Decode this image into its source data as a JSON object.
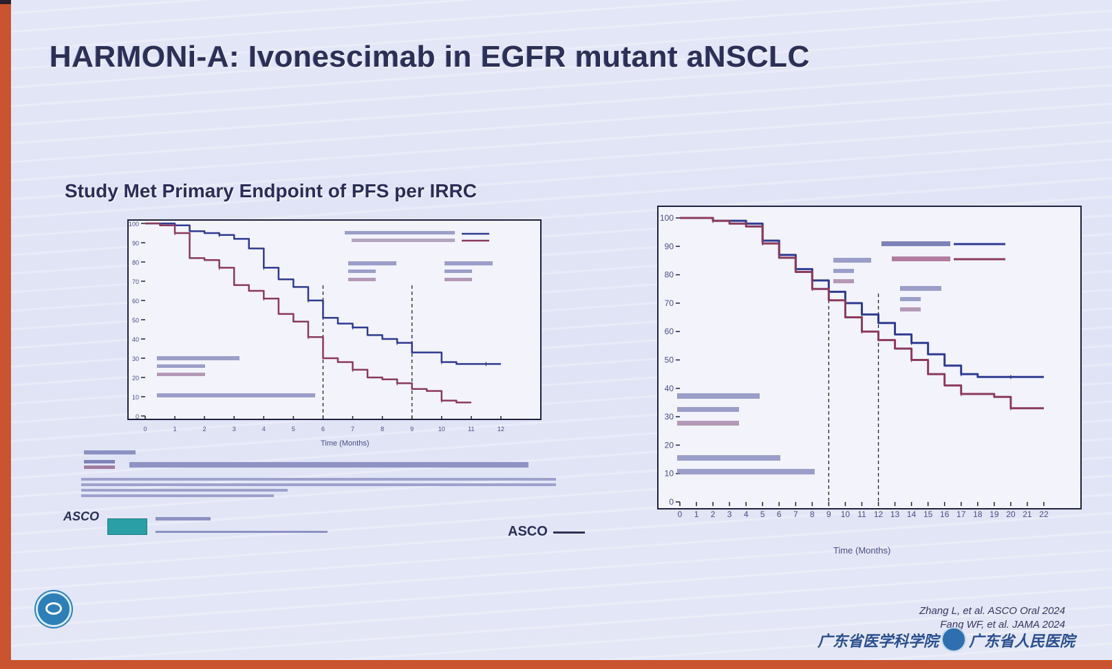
{
  "slide": {
    "title": "HARMONi-A: Ivonescimab in EGFR mutant aNSCLC",
    "subtitle": "Study Met Primary Endpoint of PFS per IRRC",
    "footer_refs": [
      "Zhang L, et al. ASCO Oral 2024",
      "Fang WF, et al. JAMA 2024"
    ],
    "asco_mark": "ASCO",
    "institution_left": "广东省医学科学院",
    "institution_right": "广东省人民医院",
    "colors": {
      "ivonescimab": "#2f3a8f",
      "placebo": "#8b3a5c",
      "frame": "#1e2040",
      "text": "#2c2f56"
    }
  },
  "chart_data": [
    {
      "type": "line",
      "title": "Study Met Primary Endpoint of PFS per IRRC",
      "xlabel": "Time (Months)",
      "ylabel": "",
      "xlim": [
        0,
        13
      ],
      "ylim": [
        0,
        100
      ],
      "xticks": [
        "0",
        "1",
        "2",
        "3",
        "4",
        "5",
        "6",
        "7",
        "8",
        "9",
        "10",
        "11",
        "12"
      ],
      "yticks": [
        "0",
        "10",
        "20",
        "30",
        "40",
        "50",
        "60",
        "70",
        "80",
        "90",
        "100"
      ],
      "grid": false,
      "legend_position": "top-right",
      "reference_lines_x": [
        6,
        9
      ],
      "series": [
        {
          "color": "#2f3a8f",
          "x": [
            0,
            0.5,
            1,
            1.5,
            2,
            2.5,
            3,
            3.5,
            4,
            4.5,
            5,
            5.5,
            6,
            6.5,
            7,
            7.5,
            8,
            8.5,
            9,
            9.5,
            10,
            10.5,
            11,
            11.5,
            12
          ],
          "y": [
            100,
            100,
            99,
            96,
            95,
            94,
            92,
            87,
            77,
            71,
            67,
            60,
            51,
            48,
            46,
            42,
            40,
            38,
            33,
            33,
            28,
            27,
            27,
            27,
            27
          ]
        },
        {
          "color": "#8b3a5c",
          "x": [
            0,
            0.5,
            1,
            1.5,
            2,
            2.5,
            3,
            3.5,
            4,
            4.5,
            5,
            5.5,
            6,
            6.5,
            7,
            7.5,
            8,
            8.5,
            9,
            9.5,
            10,
            10.5,
            11
          ],
          "y": [
            100,
            99,
            95,
            82,
            81,
            77,
            68,
            65,
            61,
            53,
            49,
            41,
            30,
            28,
            24,
            20,
            19,
            17,
            14,
            13,
            8,
            7,
            7
          ]
        }
      ]
    },
    {
      "type": "line",
      "title": "",
      "xlabel": "Time (Months)",
      "ylabel": "",
      "xlim": [
        0,
        23
      ],
      "ylim": [
        0,
        100
      ],
      "xticks": [
        "0",
        "1",
        "2",
        "3",
        "4",
        "5",
        "6",
        "7",
        "8",
        "9",
        "10",
        "11",
        "12",
        "13",
        "14",
        "15",
        "16",
        "17",
        "18",
        "19",
        "20",
        "21",
        "22"
      ],
      "yticks": [
        "0",
        "10",
        "20",
        "30",
        "40",
        "50",
        "60",
        "70",
        "80",
        "90",
        "100"
      ],
      "grid": false,
      "legend_position": "top-right",
      "reference_lines_x": [
        9,
        12
      ],
      "series": [
        {
          "color": "#2f3a8f",
          "x": [
            0,
            1,
            2,
            3,
            4,
            5,
            6,
            7,
            8,
            9,
            10,
            11,
            12,
            13,
            14,
            15,
            16,
            17,
            18,
            19,
            20,
            21,
            22
          ],
          "y": [
            100,
            100,
            99,
            99,
            98,
            92,
            87,
            82,
            78,
            74,
            70,
            66,
            63,
            59,
            56,
            52,
            48,
            45,
            44,
            44,
            44,
            44,
            44
          ]
        },
        {
          "color": "#8b3a5c",
          "x": [
            0,
            1,
            2,
            3,
            4,
            5,
            6,
            7,
            8,
            9,
            10,
            11,
            12,
            13,
            14,
            15,
            16,
            17,
            18,
            19,
            20,
            21,
            22
          ],
          "y": [
            100,
            100,
            99,
            98,
            97,
            91,
            86,
            81,
            75,
            71,
            65,
            60,
            57,
            54,
            50,
            45,
            41,
            38,
            38,
            37,
            33,
            33,
            33
          ]
        }
      ]
    }
  ]
}
